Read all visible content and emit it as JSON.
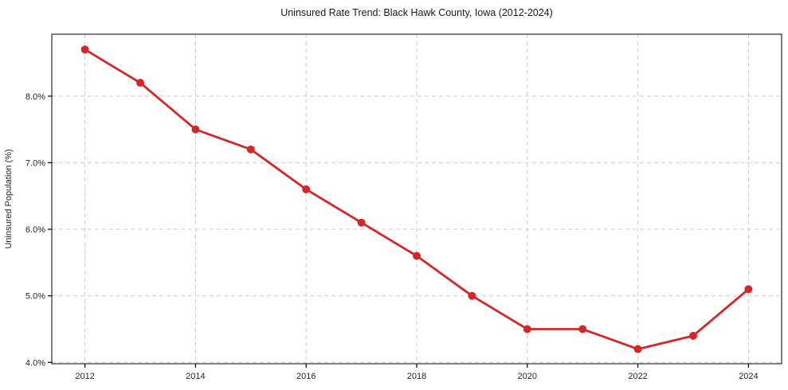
{
  "chart_data": {
    "type": "line",
    "title": "Uninsured Rate Trend: Black Hawk County, Iowa (2012-2024)",
    "xlabel": "",
    "ylabel": "Uninsured Population (%)",
    "x": [
      2012,
      2013,
      2014,
      2015,
      2016,
      2017,
      2018,
      2019,
      2020,
      2021,
      2022,
      2023,
      2024
    ],
    "values": [
      8.7,
      8.2,
      7.5,
      7.2,
      6.6,
      6.1,
      5.6,
      5.0,
      4.5,
      4.5,
      4.2,
      4.4,
      5.1
    ],
    "xlim": [
      2011.4,
      2024.6
    ],
    "ylim": [
      3.98,
      8.93
    ],
    "xticks": {
      "values": [
        2012,
        2014,
        2016,
        2018,
        2020,
        2022,
        2024
      ],
      "labels": [
        "2012",
        "2014",
        "2016",
        "2018",
        "2020",
        "2022",
        "2024"
      ]
    },
    "yticks": {
      "values": [
        4.0,
        5.0,
        6.0,
        7.0,
        8.0
      ],
      "labels": [
        "4.0%",
        "5.0%",
        "6.0%",
        "7.0%",
        "8.0%"
      ]
    },
    "grid": true,
    "grid_style": "dashed",
    "legend": "none",
    "colors": {
      "line": "#d62728",
      "marker": "#d62728",
      "grid": "#cccccc",
      "spine": "#000000",
      "tick": "#000000",
      "title": "#1a1a1a",
      "tick_label": "#262626",
      "background": "#ffffff"
    }
  }
}
